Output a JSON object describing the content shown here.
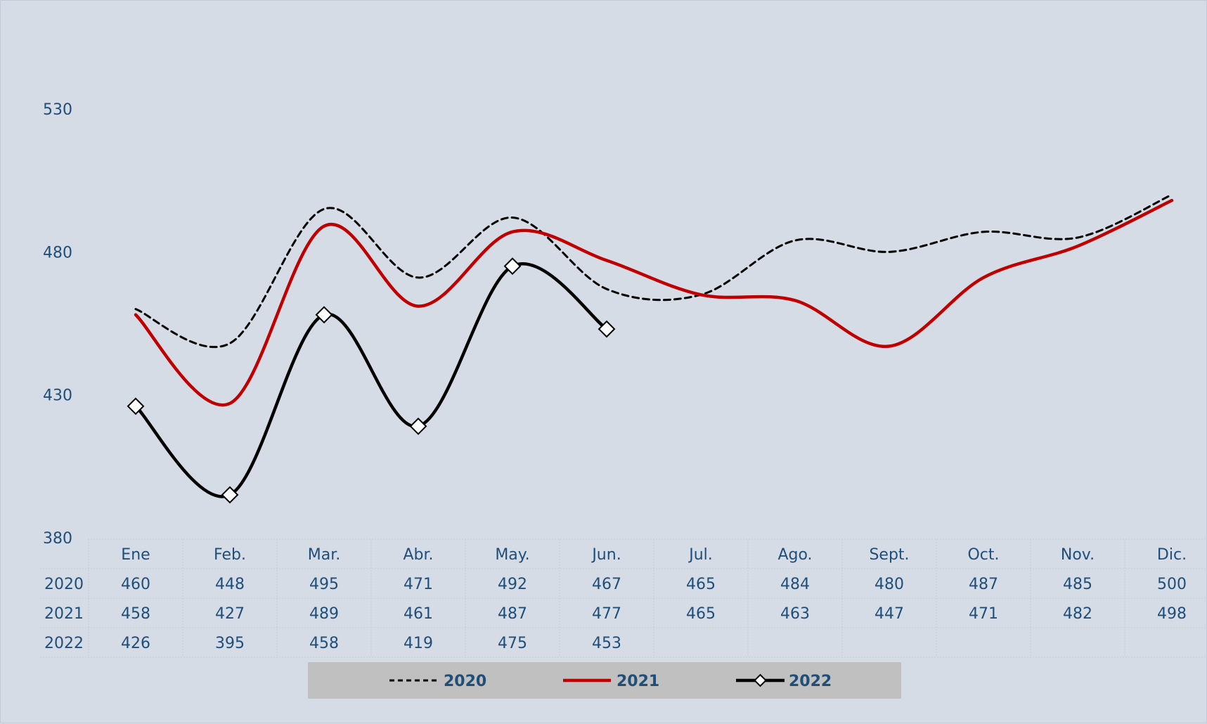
{
  "chart_data": {
    "type": "line",
    "title": "",
    "xlabel": "",
    "ylabel": "",
    "ylim": [
      380,
      530
    ],
    "yticks": [
      380,
      430,
      480,
      530
    ],
    "categories": [
      "Ene",
      "Feb.",
      "Mar.",
      "Abr.",
      "May.",
      "Jun.",
      "Jul.",
      "Ago.",
      "Sept.",
      "Oct.",
      "Nov.",
      "Dic."
    ],
    "smooth": true,
    "legend_position": "bottom",
    "data_table": true,
    "series": [
      {
        "name": "2020",
        "values": [
          460,
          448,
          495,
          471,
          492,
          467,
          465,
          484,
          480,
          487,
          485,
          500
        ],
        "color": "#000000",
        "line_style": "dashed",
        "marker": "none"
      },
      {
        "name": "2021",
        "values": [
          458,
          427,
          489,
          461,
          487,
          477,
          465,
          463,
          447,
          471,
          482,
          498
        ],
        "color": "#c00000",
        "line_style": "solid",
        "marker": "none"
      },
      {
        "name": "2022",
        "values": [
          426,
          395,
          458,
          419,
          475,
          453,
          null,
          null,
          null,
          null,
          null,
          null
        ],
        "color": "#000000",
        "line_style": "solid",
        "marker": "diamond-white"
      }
    ]
  }
}
